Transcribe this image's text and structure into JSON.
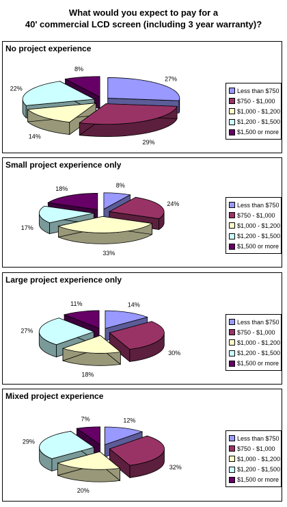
{
  "title_line1": "What would you expect to pay for a",
  "title_line2": "40' commercial LCD screen (including 3 year warranty)?",
  "legend_labels": [
    "Less than $750",
    "$750 - $1,000",
    "$1,000 - $1,200",
    "$1,200 - $1,500",
    "$1,500 or more"
  ],
  "colors": {
    "top": [
      "#9999ff",
      "#993366",
      "#ffffcc",
      "#ccffff",
      "#660066"
    ],
    "side": [
      "#5c5c99",
      "#5c1f3d",
      "#99997a",
      "#7a9999",
      "#3d003d"
    ]
  },
  "chart_data": [
    {
      "type": "pie",
      "title": "No project experience",
      "categories": [
        "Less than $750",
        "$750 - $1,000",
        "$1,000 - $1,200",
        "$1,200 - $1,500",
        "$1,500 or more"
      ],
      "values": [
        27,
        29,
        14,
        22,
        8
      ],
      "labels": [
        "27%",
        "29%",
        "14%",
        "22%",
        "8%"
      ],
      "legend": "right"
    },
    {
      "type": "pie",
      "title": "Small project experience only",
      "categories": [
        "Less than $750",
        "$750 - $1,000",
        "$1,000 - $1,200",
        "$1,200 - $1,500",
        "$1,500 or more"
      ],
      "values": [
        8,
        24,
        33,
        17,
        18
      ],
      "labels": [
        "8%",
        "24%",
        "33%",
        "17%",
        "18%"
      ],
      "legend": "right"
    },
    {
      "type": "pie",
      "title": "Large project experience only",
      "categories": [
        "Less than $750",
        "$750 - $1,000",
        "$1,000 - $1,200",
        "$1,200 - $1,500",
        "$1,500 or more"
      ],
      "values": [
        14,
        30,
        18,
        27,
        11
      ],
      "labels": [
        "14%",
        "30%",
        "18%",
        "27%",
        "11%"
      ],
      "legend": "right"
    },
    {
      "type": "pie",
      "title": "Mixed project experience",
      "categories": [
        "Less than $750",
        "$750 - $1,000",
        "$1,000 - $1,200",
        "$1,200 - $1,500",
        "$1,500 or more"
      ],
      "values": [
        12,
        32,
        20,
        29,
        7
      ],
      "labels": [
        "12%",
        "32%",
        "20%",
        "29%",
        "7%"
      ],
      "legend": "right"
    }
  ]
}
